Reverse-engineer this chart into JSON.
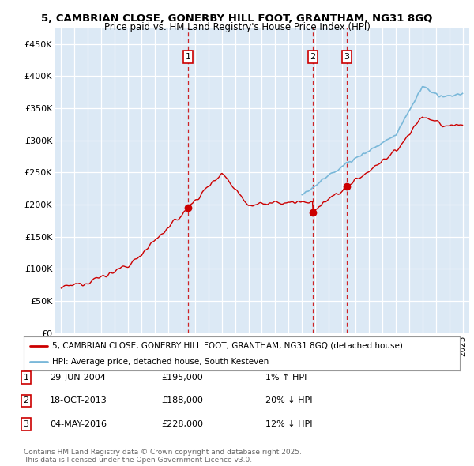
{
  "title_line1": "5, CAMBRIAN CLOSE, GONERBY HILL FOOT, GRANTHAM, NG31 8GQ",
  "title_line2": "Price paid vs. HM Land Registry's House Price Index (HPI)",
  "background_color": "#dce9f5",
  "legend_label_red": "5, CAMBRIAN CLOSE, GONERBY HILL FOOT, GRANTHAM, NG31 8GQ (detached house)",
  "legend_label_blue": "HPI: Average price, detached house, South Kesteven",
  "sale_points": [
    {
      "label": "1",
      "date_num": 2004.49,
      "price": 195000
    },
    {
      "label": "2",
      "date_num": 2013.8,
      "price": 188000
    },
    {
      "label": "3",
      "date_num": 2016.34,
      "price": 228000
    }
  ],
  "table_rows": [
    {
      "num": "1",
      "date": "29-JUN-2004",
      "price": "£195,000",
      "note": "1% ↑ HPI"
    },
    {
      "num": "2",
      "date": "18-OCT-2013",
      "price": "£188,000",
      "note": "20% ↓ HPI"
    },
    {
      "num": "3",
      "date": "04-MAY-2016",
      "price": "£228,000",
      "note": "12% ↓ HPI"
    }
  ],
  "footer": "Contains HM Land Registry data © Crown copyright and database right 2025.\nThis data is licensed under the Open Government Licence v3.0.",
  "ylim": [
    0,
    475000
  ],
  "xlim_start": 1994.5,
  "xlim_end": 2025.5,
  "yticks": [
    0,
    50000,
    100000,
    150000,
    200000,
    250000,
    300000,
    350000,
    400000,
    450000
  ],
  "ytick_labels": [
    "£0",
    "£50K",
    "£100K",
    "£150K",
    "£200K",
    "£250K",
    "£300K",
    "£350K",
    "£400K",
    "£450K"
  ],
  "red_color": "#cc0000",
  "blue_color": "#7ab8d9",
  "hpi_start_year": 2013.0
}
